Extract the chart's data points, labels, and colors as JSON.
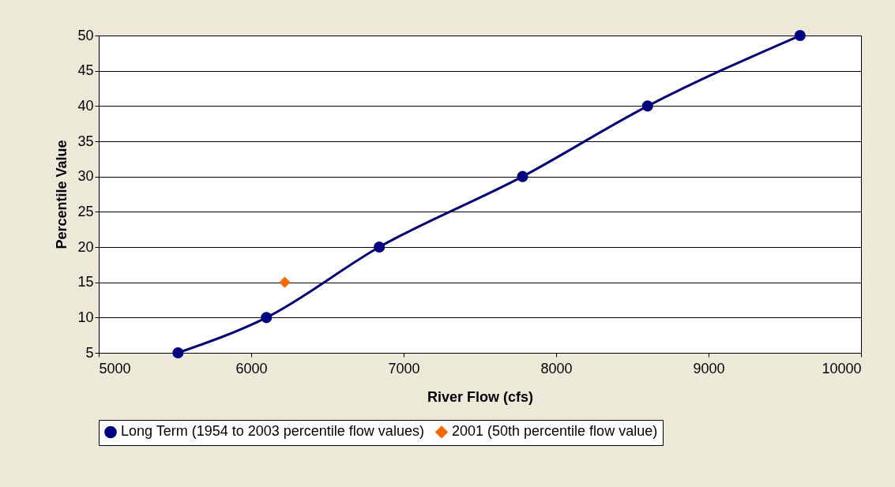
{
  "chart_data": {
    "type": "line",
    "xlabel": "River Flow (cfs)",
    "ylabel": "Percentile Value",
    "xlim": [
      5000,
      10000
    ],
    "xticks": [
      5000,
      6000,
      7000,
      8000,
      9000,
      10000
    ],
    "ylim": [
      5,
      50
    ],
    "yticks": [
      5,
      10,
      15,
      20,
      25,
      30,
      35,
      40,
      45,
      50
    ],
    "grid": "y",
    "legend": "bottom",
    "series": [
      {
        "name": "Long Term (1954 to 2003 percentile flow values)",
        "marker": "circle",
        "color": "#000080",
        "x": [
          5520,
          6100,
          6840,
          7780,
          8600,
          9600
        ],
        "values": [
          5,
          10,
          20,
          30,
          40,
          50
        ]
      },
      {
        "name": "2001 (50th percentile flow value)",
        "type": "scatter",
        "marker": "diamond",
        "color": "#ff6600",
        "x": [
          6220
        ],
        "values": [
          15
        ]
      }
    ]
  }
}
